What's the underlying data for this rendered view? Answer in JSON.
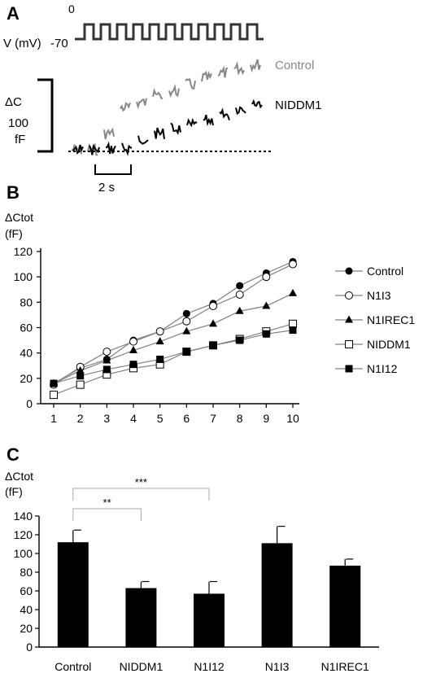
{
  "panel_a": {
    "label": "A",
    "voltage_label": "V (mV)",
    "voltage_high": "0",
    "voltage_low": "-70",
    "delta_c_label": "ΔC",
    "scale_value": "100",
    "scale_unit": "fF",
    "time_scale": "2 s",
    "trace_labels": [
      "Control",
      "NIDDM1"
    ],
    "colors": {
      "control": "#888888",
      "niddm1": "#000000"
    }
  },
  "chart_data": [
    {
      "type": "line",
      "panel": "B",
      "ylabel": "ΔCtot",
      "yunit": "(fF)",
      "x": [
        1,
        2,
        3,
        4,
        5,
        6,
        7,
        8,
        9,
        10
      ],
      "xlim": [
        1,
        10
      ],
      "ylim": [
        0,
        120
      ],
      "yticks": [
        0,
        20,
        40,
        60,
        80,
        100,
        120
      ],
      "legend_position": "right",
      "series": [
        {
          "name": "Control",
          "marker": "filled-circle",
          "values": [
            16,
            28,
            35,
            50,
            57,
            71,
            79,
            93,
            103,
            112
          ]
        },
        {
          "name": "N1I3",
          "marker": "open-circle",
          "values": [
            15,
            29,
            41,
            49,
            57,
            65,
            77,
            86,
            100,
            110
          ]
        },
        {
          "name": "N1IREC1",
          "marker": "filled-triangle",
          "values": [
            16,
            26,
            34,
            42,
            49,
            57,
            63,
            73,
            77,
            87
          ]
        },
        {
          "name": "NIDDM1",
          "marker": "open-square",
          "values": [
            7,
            15,
            23,
            28,
            31,
            41,
            46,
            51,
            57,
            63
          ]
        },
        {
          "name": "N1I12",
          "marker": "filled-square",
          "values": [
            16,
            22,
            27,
            31,
            35,
            41,
            46,
            50,
            55,
            58
          ]
        }
      ]
    },
    {
      "type": "bar",
      "panel": "C",
      "ylabel": "ΔCtot",
      "yunit": "(fF)",
      "categories": [
        "Control",
        "NIDDM1",
        "N1I12",
        "N1I3",
        "N1IREC1"
      ],
      "values": [
        112,
        63,
        57,
        111,
        87
      ],
      "errors": [
        13,
        7,
        13,
        18,
        7
      ],
      "ylim": [
        0,
        140
      ],
      "yticks": [
        0,
        20,
        40,
        60,
        80,
        100,
        120,
        140
      ],
      "bar_color": "#000000",
      "significance": [
        {
          "from": "Control",
          "to": "NIDDM1",
          "label": "**"
        },
        {
          "from": "Control",
          "to": "N1I12",
          "label": "***"
        }
      ]
    }
  ]
}
